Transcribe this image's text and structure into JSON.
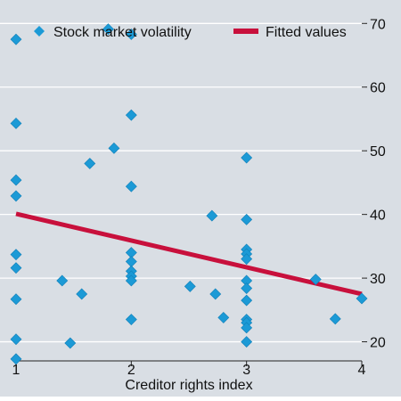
{
  "background_color": "#d9dee4",
  "gridline_color": "#ffffff",
  "chart_data": {
    "type": "scatter",
    "xlabel": "Creditor rights index",
    "ylabel": "",
    "xlim": [
      1,
      4
    ],
    "ylim": [
      17,
      72
    ],
    "x_ticks": [
      1,
      2,
      3,
      4
    ],
    "y_ticks": [
      20,
      30,
      40,
      50,
      60,
      70
    ],
    "y_axis_side": "right",
    "grid": "horizontal",
    "legend_position": "top",
    "series": [
      {
        "name": "Stock market volatility",
        "kind": "scatter",
        "marker": "diamond",
        "color": "#1c9ad6",
        "points": [
          {
            "x": 1.0,
            "y": 67.5
          },
          {
            "x": 1.0,
            "y": 54.3
          },
          {
            "x": 1.0,
            "y": 45.4
          },
          {
            "x": 1.0,
            "y": 42.9
          },
          {
            "x": 1.0,
            "y": 33.7
          },
          {
            "x": 1.0,
            "y": 31.6
          },
          {
            "x": 1.0,
            "y": 26.7
          },
          {
            "x": 1.0,
            "y": 20.4
          },
          {
            "x": 1.0,
            "y": 17.3
          },
          {
            "x": 1.4,
            "y": 29.6
          },
          {
            "x": 1.47,
            "y": 19.8
          },
          {
            "x": 1.57,
            "y": 27.5
          },
          {
            "x": 1.64,
            "y": 48.0
          },
          {
            "x": 1.8,
            "y": 69.1
          },
          {
            "x": 1.85,
            "y": 50.4
          },
          {
            "x": 2.0,
            "y": 68.3
          },
          {
            "x": 2.0,
            "y": 55.6
          },
          {
            "x": 2.0,
            "y": 44.4
          },
          {
            "x": 2.0,
            "y": 34.0
          },
          {
            "x": 2.0,
            "y": 32.6
          },
          {
            "x": 2.0,
            "y": 31.1
          },
          {
            "x": 2.0,
            "y": 30.3
          },
          {
            "x": 2.0,
            "y": 29.6
          },
          {
            "x": 2.0,
            "y": 23.5
          },
          {
            "x": 2.51,
            "y": 28.7
          },
          {
            "x": 2.7,
            "y": 39.8
          },
          {
            "x": 2.73,
            "y": 27.5
          },
          {
            "x": 2.8,
            "y": 23.8
          },
          {
            "x": 3.0,
            "y": 48.9
          },
          {
            "x": 3.0,
            "y": 39.2
          },
          {
            "x": 3.0,
            "y": 34.5
          },
          {
            "x": 3.0,
            "y": 33.8
          },
          {
            "x": 3.0,
            "y": 33.0
          },
          {
            "x": 3.0,
            "y": 29.6
          },
          {
            "x": 3.0,
            "y": 28.4
          },
          {
            "x": 3.0,
            "y": 26.5
          },
          {
            "x": 3.0,
            "y": 23.5
          },
          {
            "x": 3.0,
            "y": 23.0
          },
          {
            "x": 3.0,
            "y": 22.2
          },
          {
            "x": 3.0,
            "y": 20.0
          },
          {
            "x": 3.6,
            "y": 29.8
          },
          {
            "x": 3.77,
            "y": 23.6
          },
          {
            "x": 4.0,
            "y": 26.8
          }
        ]
      },
      {
        "name": "Fitted values",
        "kind": "line",
        "color": "#c8103c",
        "points": [
          {
            "x": 1.0,
            "y": 40.1
          },
          {
            "x": 4.0,
            "y": 27.5
          }
        ]
      }
    ]
  }
}
